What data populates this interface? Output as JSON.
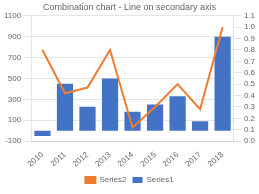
{
  "chart_data": {
    "type": "bar",
    "title": "Combination chart - Line on secondary axis",
    "categories": [
      "2010",
      "2011",
      "2012",
      "2013",
      "2014",
      "2015",
      "2016",
      "2017",
      "2018"
    ],
    "series": [
      {
        "name": "Series1",
        "type": "bar",
        "color": "#4472c4",
        "values": [
          -50,
          450,
          230,
          500,
          180,
          250,
          330,
          90,
          900
        ]
      },
      {
        "name": "Series2",
        "type": "line",
        "axis": "y2",
        "color": "#ed7d31",
        "values": [
          0.8,
          0.42,
          0.47,
          0.8,
          0.12,
          0.3,
          0.5,
          0.28,
          1.0
        ]
      }
    ],
    "ylim": [
      -100,
      1100
    ],
    "yticks": [
      -100,
      100,
      300,
      500,
      700,
      900,
      1100
    ],
    "y2lim": [
      0,
      1.1
    ],
    "y2ticks": [
      {
        "value": 0,
        "label": "0.0"
      },
      0.1,
      0.2,
      0.3,
      0.4,
      0.5,
      0.6,
      0.7,
      0.8,
      0.9,
      {
        "value": 1.0,
        "label": "1.0"
      },
      1.1
    ],
    "grid": true,
    "legend": "bottom"
  }
}
